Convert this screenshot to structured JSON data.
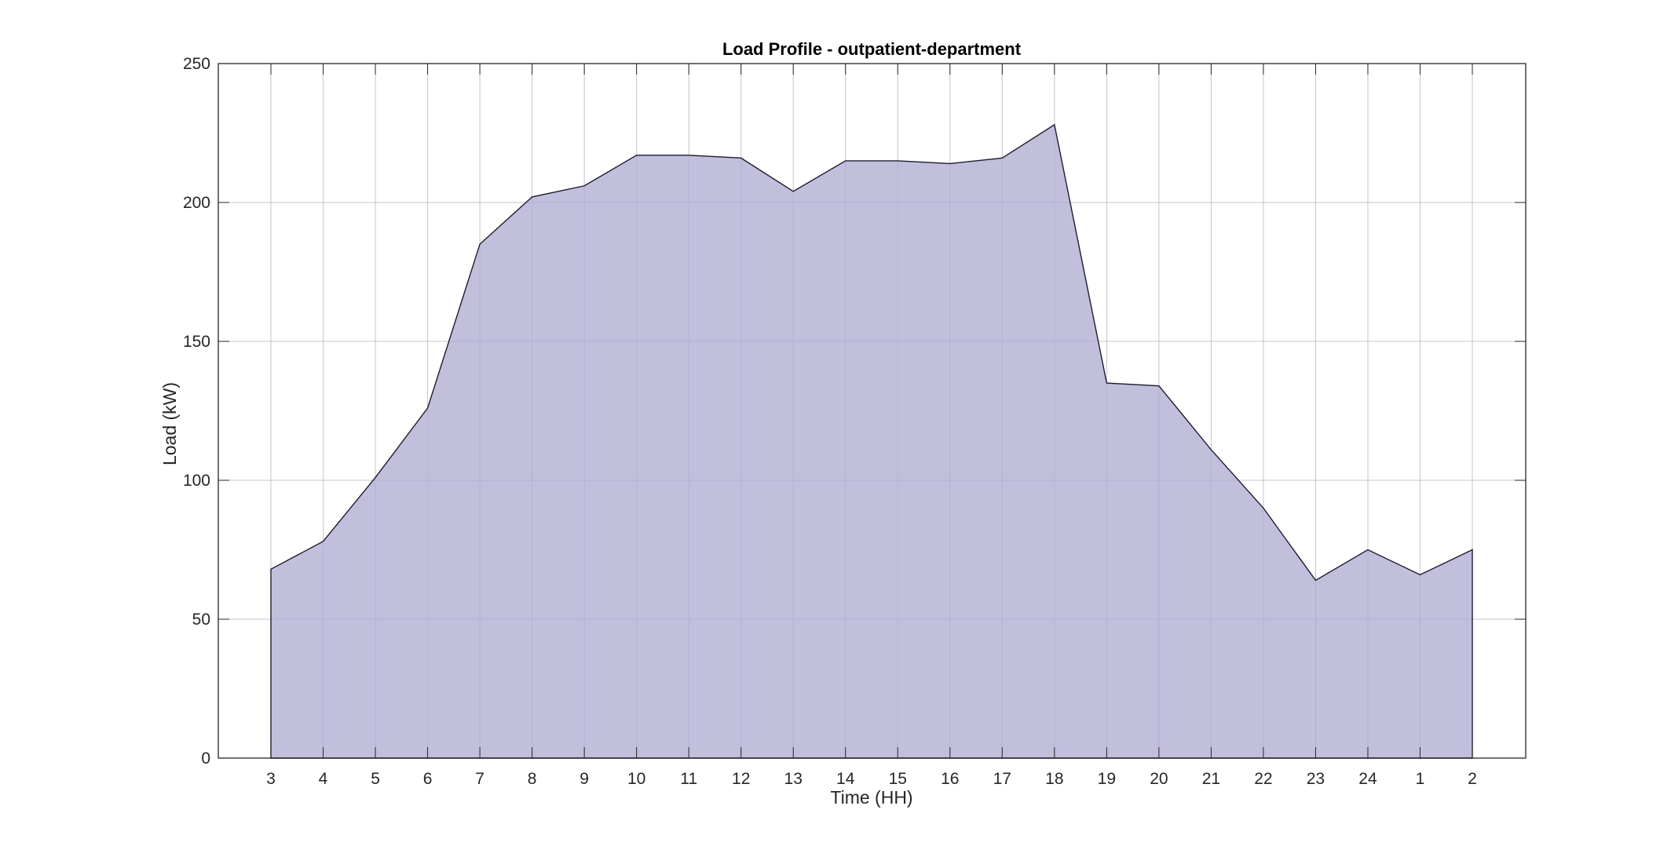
{
  "chart_data": {
    "type": "area",
    "title": "Load Profile - outpatient-department",
    "xlabel": "Time (HH)",
    "ylabel": "Load (kW)",
    "categories": [
      "3",
      "4",
      "5",
      "6",
      "7",
      "8",
      "9",
      "10",
      "11",
      "12",
      "13",
      "14",
      "15",
      "16",
      "17",
      "18",
      "19",
      "20",
      "21",
      "22",
      "23",
      "24",
      "1",
      "2"
    ],
    "values": [
      68,
      78,
      101,
      126,
      185,
      202,
      206,
      217,
      217,
      216,
      204,
      215,
      215,
      214,
      216,
      228,
      135,
      134,
      111,
      90,
      64,
      75,
      66,
      75
    ],
    "ylim": [
      0,
      250
    ],
    "yticks": [
      0,
      50,
      100,
      150,
      200,
      250
    ],
    "grid": true,
    "colors": {
      "fill": "#c1bfdc",
      "line": "#1c1c30",
      "axis": "#262626",
      "grid": "#dcdcdc"
    }
  }
}
